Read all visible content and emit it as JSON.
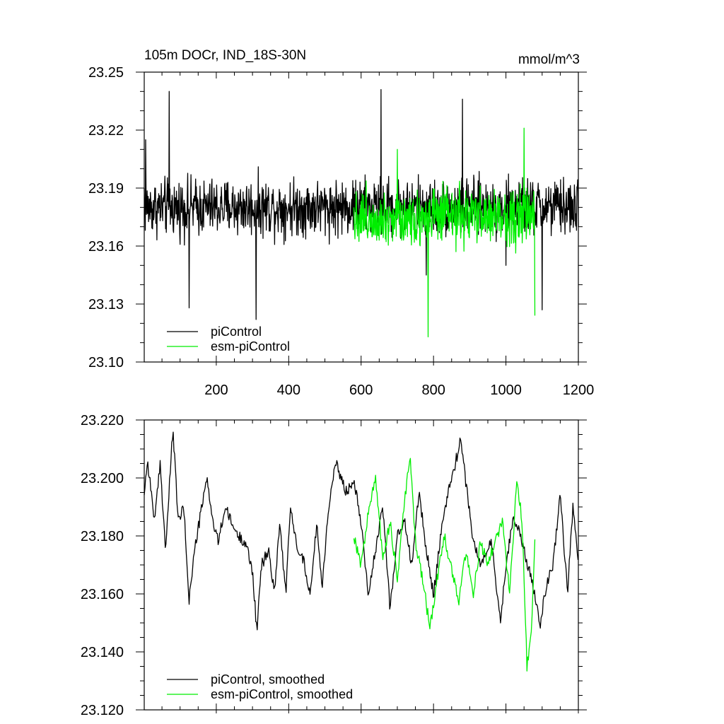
{
  "chart_data": [
    {
      "type": "line",
      "title": "105m DOCr, IND_18S-30N",
      "units": "mmol/m^3",
      "xlabel": "",
      "ylabel": "",
      "xlim": [
        1,
        1200
      ],
      "ylim": [
        23.1,
        23.25
      ],
      "x_ticks": [
        200,
        400,
        600,
        800,
        1000,
        1200
      ],
      "x_tick_labels": [
        "200",
        "400",
        "600",
        "800",
        "1000",
        "1200"
      ],
      "y_ticks": [
        23.1,
        23.13,
        23.16,
        23.19,
        23.22,
        23.25
      ],
      "y_tick_labels": [
        "23.10",
        "23.13",
        "23.16",
        "23.19",
        "23.22",
        "23.25"
      ],
      "grid": false,
      "legend_position": "bottom-left",
      "series": [
        {
          "name": "piControl",
          "color": "#000000",
          "x_range": [
            1,
            1200
          ],
          "mean": 23.18,
          "amplitude": 0.016,
          "keypoints": [
            [
              1,
              23.19
            ],
            [
              5,
              23.215
            ],
            [
              70,
              23.24
            ],
            [
              125,
              23.128
            ],
            [
              310,
              23.122
            ],
            [
              580,
              23.19
            ],
            [
              655,
              23.241
            ],
            [
              780,
              23.145
            ],
            [
              880,
              23.236
            ],
            [
              1000,
              23.15
            ],
            [
              1100,
              23.127
            ],
            [
              1200,
              23.17
            ]
          ]
        },
        {
          "name": "esm-piControl",
          "color": "#00ee00",
          "x_range": [
            580,
            1080
          ],
          "mean": 23.175,
          "amplitude": 0.016,
          "keypoints": [
            [
              580,
              23.18
            ],
            [
              700,
              23.21
            ],
            [
              785,
              23.113
            ],
            [
              900,
              23.18
            ],
            [
              1050,
              23.221
            ],
            [
              1080,
              23.124
            ]
          ]
        }
      ]
    },
    {
      "type": "line",
      "title": "",
      "xlabel": "",
      "ylabel": "",
      "xlim": [
        1,
        1200
      ],
      "ylim": [
        23.12,
        23.22
      ],
      "y_ticks": [
        23.12,
        23.14,
        23.16,
        23.18,
        23.2,
        23.22
      ],
      "y_tick_labels": [
        "23.120",
        "23.140",
        "23.160",
        "23.180",
        "23.200",
        "23.220"
      ],
      "grid": false,
      "legend_position": "bottom-left",
      "series": [
        {
          "name": "piControl, smoothed",
          "color": "#000000",
          "x_range": [
            1,
            1200
          ],
          "keypoints": [
            [
              1,
              23.195
            ],
            [
              10,
              23.206
            ],
            [
              30,
              23.185
            ],
            [
              45,
              23.205
            ],
            [
              60,
              23.175
            ],
            [
              72,
              23.2
            ],
            [
              80,
              23.217
            ],
            [
              95,
              23.185
            ],
            [
              110,
              23.19
            ],
            [
              125,
              23.158
            ],
            [
              140,
              23.175
            ],
            [
              160,
              23.19
            ],
            [
              175,
              23.2
            ],
            [
              190,
              23.185
            ],
            [
              205,
              23.178
            ],
            [
              225,
              23.19
            ],
            [
              240,
              23.185
            ],
            [
              260,
              23.18
            ],
            [
              280,
              23.178
            ],
            [
              300,
              23.168
            ],
            [
              312,
              23.147
            ],
            [
              325,
              23.17
            ],
            [
              345,
              23.175
            ],
            [
              360,
              23.16
            ],
            [
              375,
              23.185
            ],
            [
              392,
              23.16
            ],
            [
              405,
              23.19
            ],
            [
              420,
              23.178
            ],
            [
              440,
              23.172
            ],
            [
              460,
              23.16
            ],
            [
              478,
              23.185
            ],
            [
              492,
              23.162
            ],
            [
              510,
              23.19
            ],
            [
              530,
              23.205
            ],
            [
              560,
              23.195
            ],
            [
              580,
              23.2
            ],
            [
              600,
              23.185
            ],
            [
              620,
              23.16
            ],
            [
              640,
              23.175
            ],
            [
              660,
              23.19
            ],
            [
              680,
              23.155
            ],
            [
              700,
              23.18
            ],
            [
              720,
              23.185
            ],
            [
              740,
              23.17
            ],
            [
              760,
              23.195
            ],
            [
              780,
              23.175
            ],
            [
              800,
              23.16
            ],
            [
              820,
              23.18
            ],
            [
              840,
              23.195
            ],
            [
              860,
              23.205
            ],
            [
              875,
              23.213
            ],
            [
              890,
              23.198
            ],
            [
              910,
              23.178
            ],
            [
              930,
              23.17
            ],
            [
              960,
              23.178
            ],
            [
              985,
              23.15
            ],
            [
              1000,
              23.17
            ],
            [
              1020,
              23.187
            ],
            [
              1040,
              23.18
            ],
            [
              1060,
              23.17
            ],
            [
              1080,
              23.16
            ],
            [
              1095,
              23.15
            ],
            [
              1110,
              23.162
            ],
            [
              1130,
              23.17
            ],
            [
              1150,
              23.195
            ],
            [
              1170,
              23.16
            ],
            [
              1185,
              23.19
            ],
            [
              1200,
              23.172
            ]
          ]
        },
        {
          "name": "esm-piControl, smoothed",
          "color": "#00ee00",
          "x_range": [
            580,
            1080
          ],
          "keypoints": [
            [
              580,
              23.18
            ],
            [
              600,
              23.17
            ],
            [
              620,
              23.188
            ],
            [
              640,
              23.2
            ],
            [
              660,
              23.172
            ],
            [
              680,
              23.185
            ],
            [
              700,
              23.165
            ],
            [
              720,
              23.192
            ],
            [
              735,
              23.207
            ],
            [
              750,
              23.178
            ],
            [
              770,
              23.165
            ],
            [
              790,
              23.148
            ],
            [
              810,
              23.165
            ],
            [
              830,
              23.18
            ],
            [
              850,
              23.168
            ],
            [
              870,
              23.158
            ],
            [
              890,
              23.175
            ],
            [
              910,
              23.16
            ],
            [
              930,
              23.178
            ],
            [
              950,
              23.17
            ],
            [
              970,
              23.178
            ],
            [
              990,
              23.185
            ],
            [
              1010,
              23.16
            ],
            [
              1030,
              23.199
            ],
            [
              1045,
              23.185
            ],
            [
              1058,
              23.135
            ],
            [
              1070,
              23.145
            ],
            [
              1080,
              23.18
            ]
          ]
        }
      ]
    }
  ]
}
